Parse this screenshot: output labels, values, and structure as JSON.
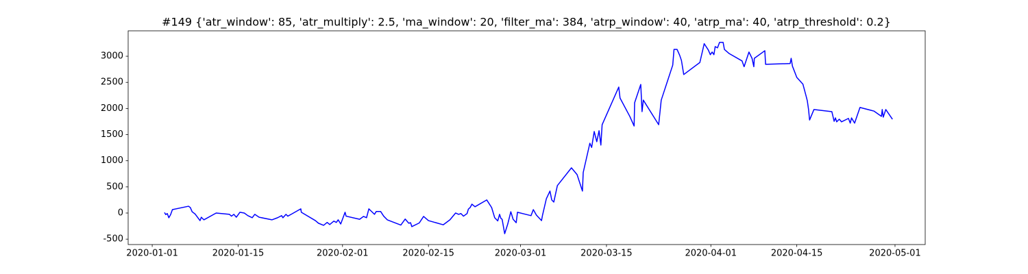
{
  "chart_data": {
    "type": "line",
    "title": "#149 {'atr_window': 85, 'atr_multiply': 2.5, 'ma_window': 20, 'filter_ma': 384, 'atrp_window': 40, 'atrp_ma': 40, 'atrp_threshold': 0.2}",
    "color": "#0000ff",
    "x": [
      "2020-01-03 00:00",
      "2020-01-03 05:00",
      "2020-01-03 11:00",
      "2020-01-03 17:00",
      "2020-01-04 00:00",
      "2020-01-04 07:00",
      "2020-01-06 22:00",
      "2020-01-07 05:00",
      "2020-01-07 12:00",
      "2020-01-08 00:00",
      "2020-01-08 19:00",
      "2020-01-09 00:00",
      "2020-01-09 10:00",
      "2020-01-11 10:00",
      "2020-01-13 14:00",
      "2020-01-13 22:00",
      "2020-01-14 07:00",
      "2020-01-14 17:00",
      "2020-01-15 07:00",
      "2020-01-16 00:00",
      "2020-01-16 14:00",
      "2020-01-17 07:00",
      "2020-01-17 17:00",
      "2020-01-18 10:00",
      "2020-01-20 12:00",
      "2020-01-21 10:00",
      "2020-01-22 02:00",
      "2020-01-22 07:00",
      "2020-01-22 19:00",
      "2020-01-23 02:00",
      "2020-01-23 17:00",
      "2020-01-25 05:00",
      "2020-01-25 07:00",
      "2020-01-27 14:00",
      "2020-01-28 02:00",
      "2020-01-28 22:00",
      "2020-01-29 12:00",
      "2020-01-29 22:00",
      "2020-01-30 14:00",
      "2020-01-31 00:00",
      "2020-01-31 07:00",
      "2020-01-31 17:00",
      "2020-02-01 10:00",
      "2020-02-01 14:00",
      "2020-02-03 19:00",
      "2020-02-04 10:00",
      "2020-02-04 22:00",
      "2020-02-05 07:00",
      "2020-02-06 05:00",
      "2020-02-06 12:00",
      "2020-02-07 05:00",
      "2020-02-07 17:00",
      "2020-02-08 07:00",
      "2020-02-10 12:00",
      "2020-02-11 05:00",
      "2020-02-11 19:00",
      "2020-02-12 02:00",
      "2020-02-12 07:00",
      "2020-02-13 12:00",
      "2020-02-14 05:00",
      "2020-02-15 00:00",
      "2020-02-17 10:00",
      "2020-02-18 12:00",
      "2020-02-19 10:00",
      "2020-02-19 22:00",
      "2020-02-20 07:00",
      "2020-02-20 17:00",
      "2020-02-21 07:00",
      "2020-02-21 12:00",
      "2020-02-21 19:00",
      "2020-02-22 02:00",
      "2020-02-22 14:00",
      "2020-02-24 12:00",
      "2020-02-25 07:00",
      "2020-02-25 19:00",
      "2020-02-26 07:00",
      "2020-02-26 14:00",
      "2020-02-26 19:00",
      "2020-02-27 00:00",
      "2020-02-27 10:00",
      "2020-02-27 22:00",
      "2020-02-28 10:00",
      "2020-02-28 19:00",
      "2020-02-29 07:00",
      "2020-02-29 12:00",
      "2020-03-02 17:00",
      "2020-03-03 02:00",
      "2020-03-03 14:00",
      "2020-03-04 10:00",
      "2020-03-04 14:00",
      "2020-03-05 05:00",
      "2020-03-05 19:00",
      "2020-03-06 02:00",
      "2020-03-06 10:00",
      "2020-03-07 00:00",
      "2020-03-09 07:00",
      "2020-03-10 05:00",
      "2020-03-11 02:00",
      "2020-03-11 05:00",
      "2020-03-12 07:00",
      "2020-03-12 14:00",
      "2020-03-13 00:00",
      "2020-03-13 10:00",
      "2020-03-13 19:00",
      "2020-03-14 02:00",
      "2020-03-14 07:00",
      "2020-03-17 00:00",
      "2020-03-17 05:00",
      "2020-03-18 19:00",
      "2020-03-19 12:00",
      "2020-03-19 14:00",
      "2020-03-20 14:00",
      "2020-03-20 19:00",
      "2020-03-21 00:00",
      "2020-03-23 12:00",
      "2020-03-23 22:00",
      "2020-03-25 19:00",
      "2020-03-26 00:00",
      "2020-03-26 12:00",
      "2020-03-26 22:00",
      "2020-03-27 05:00",
      "2020-03-27 14:00",
      "2020-03-30 05:00",
      "2020-03-30 22:00",
      "2020-03-31 14:00",
      "2020-03-31 22:00",
      "2020-04-01 05:00",
      "2020-04-01 12:00",
      "2020-04-01 17:00",
      "2020-04-02 02:00",
      "2020-04-02 10:00",
      "2020-04-03 00:00",
      "2020-04-03 05:00",
      "2020-04-04 00:00",
      "2020-04-06 02:00",
      "2020-04-06 10:00",
      "2020-04-07 05:00",
      "2020-04-07 17:00",
      "2020-04-08 00:00",
      "2020-04-08 02:00",
      "2020-04-09 19:00",
      "2020-04-09 22:00",
      "2020-04-13 22:00",
      "2020-04-14 02:00",
      "2020-04-14 07:00",
      "2020-04-15 00:00",
      "2020-04-16 00:00",
      "2020-04-16 12:00",
      "2020-04-16 17:00",
      "2020-04-16 22:00",
      "2020-04-17 02:00",
      "2020-04-17 19:00",
      "2020-04-20 17:00",
      "2020-04-21 02:00",
      "2020-04-21 07:00",
      "2020-04-21 12:00",
      "2020-04-21 22:00",
      "2020-04-22 07:00",
      "2020-04-23 10:00",
      "2020-04-23 17:00",
      "2020-04-23 22:00",
      "2020-04-24 10:00",
      "2020-04-25 07:00",
      "2020-04-27 14:00",
      "2020-04-28 19:00",
      "2020-04-28 22:00",
      "2020-04-29 02:00",
      "2020-04-29 12:00",
      "2020-04-30 02:00",
      "2020-04-30 14:00"
    ],
    "values": [
      10,
      -30,
      -10,
      -90,
      -30,
      65,
      130,
      105,
      25,
      -20,
      -145,
      -80,
      -130,
      0,
      -25,
      -60,
      -25,
      -80,
      15,
      0,
      -50,
      -90,
      -25,
      -80,
      -130,
      -90,
      -50,
      -90,
      -25,
      -60,
      -20,
      80,
      15,
      -145,
      -195,
      -235,
      -180,
      -220,
      -155,
      -180,
      -130,
      -210,
      15,
      -60,
      -120,
      -65,
      -90,
      80,
      -25,
      30,
      30,
      -60,
      -130,
      -230,
      -115,
      -195,
      -185,
      -260,
      -190,
      -65,
      -145,
      -225,
      -130,
      0,
      -25,
      -10,
      -60,
      -10,
      75,
      105,
      170,
      120,
      250,
      105,
      -90,
      -150,
      -25,
      -100,
      -120,
      -395,
      -210,
      25,
      -120,
      -185,
      15,
      -50,
      65,
      -40,
      -145,
      -40,
      275,
      420,
      250,
      210,
      525,
      865,
      735,
      420,
      775,
      1335,
      1255,
      1560,
      1365,
      1575,
      1300,
      1690,
      2410,
      2200,
      1850,
      1665,
      2110,
      2460,
      1940,
      2160,
      1690,
      2160,
      2830,
      3130,
      3130,
      3020,
      2920,
      2650,
      2880,
      3240,
      3120,
      3030,
      3080,
      3030,
      3185,
      3160,
      3265,
      3265,
      3130,
      3050,
      2910,
      2800,
      3080,
      2960,
      2800,
      2960,
      3105,
      2845,
      2860,
      2960,
      2810,
      2595,
      2465,
      2245,
      2150,
      1980,
      1780,
      1980,
      1940,
      1755,
      1820,
      1745,
      1795,
      1745,
      1810,
      1720,
      1820,
      1720,
      2020,
      1950,
      1850,
      1980,
      1835,
      1980,
      1880,
      1795
    ],
    "xlim": [
      "2019-12-28 02:00",
      "2020-05-05 22:00"
    ],
    "xticks": [
      "2020-01-01",
      "2020-01-15",
      "2020-02-01",
      "2020-02-15",
      "2020-03-01",
      "2020-03-15",
      "2020-04-01",
      "2020-04-15",
      "2020-05-01"
    ],
    "ylim": [
      -603,
      3486
    ],
    "yticks": [
      -500,
      0,
      500,
      1000,
      1500,
      2000,
      2500,
      3000
    ]
  }
}
